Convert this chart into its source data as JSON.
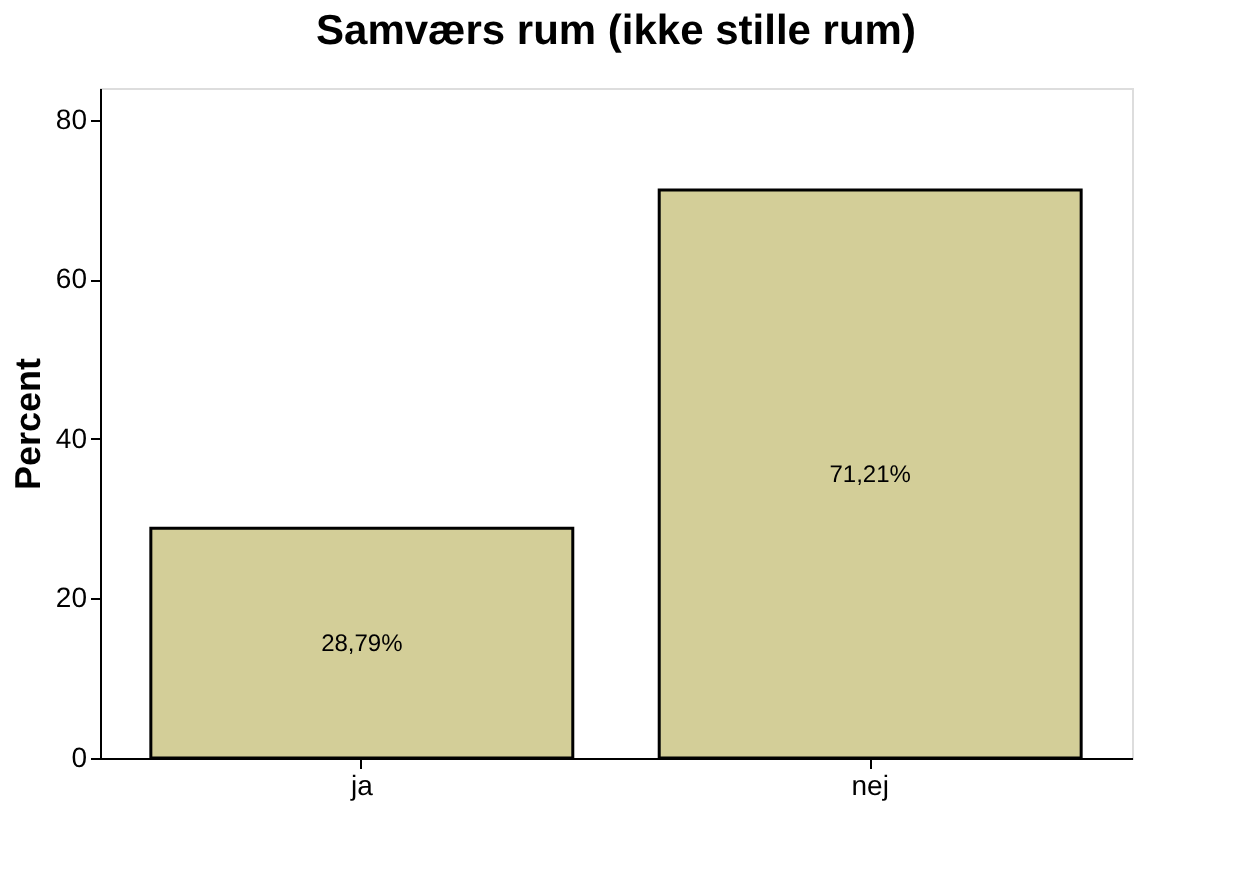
{
  "chart_data": {
    "type": "bar",
    "title": "Samværs rum (ikke stille rum)",
    "ylabel": "Percent",
    "categories": [
      "ja",
      "nej"
    ],
    "values": [
      28.79,
      71.21
    ],
    "color": "#d3ce98",
    "value_labels": [
      "28,79%",
      "71,21%"
    ],
    "ylim": [
      0,
      84
    ],
    "yticks": [
      0,
      20,
      40,
      60,
      80
    ],
    "grid": false
  }
}
